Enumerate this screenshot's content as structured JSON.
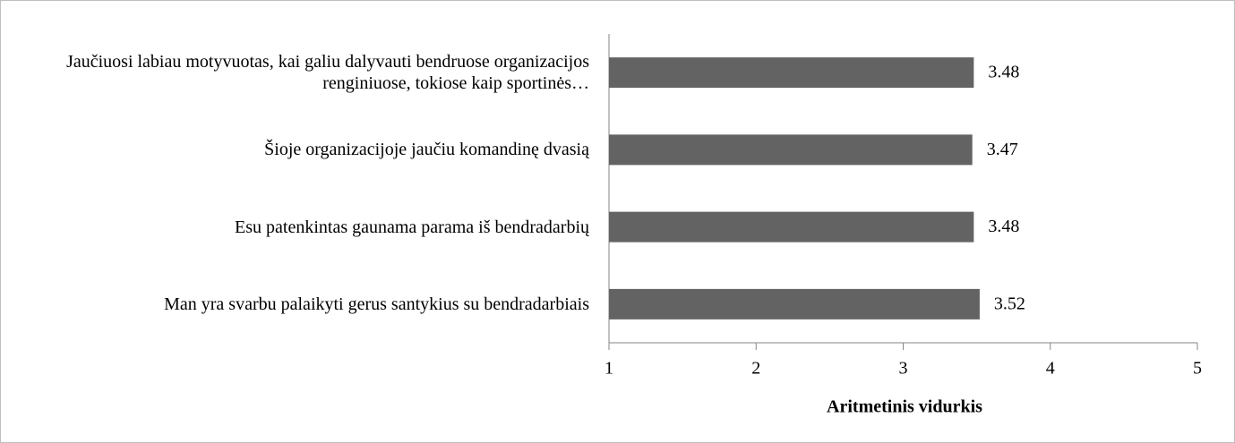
{
  "chart_data": {
    "type": "bar",
    "orientation": "horizontal",
    "categories": [
      "Jaučiuosi labiau motyvuotas, kai galiu dalyvauti bendruose organizacijos renginiuose, tokiose kaip sportinės…",
      "Šioje organizacijoje jaučiu komandinę dvasią",
      "Esu patenkintas gaunama parama iš bendradarbių",
      "Man yra svarbu palaikyti gerus santykius su bendradarbiais"
    ],
    "values": [
      3.48,
      3.47,
      3.48,
      3.52
    ],
    "color": "#636363",
    "xlim": [
      1,
      5
    ],
    "xticks": [
      1,
      2,
      3,
      4,
      5
    ],
    "xlabel": "Aritmetinis vidurkis",
    "grid": false
  }
}
